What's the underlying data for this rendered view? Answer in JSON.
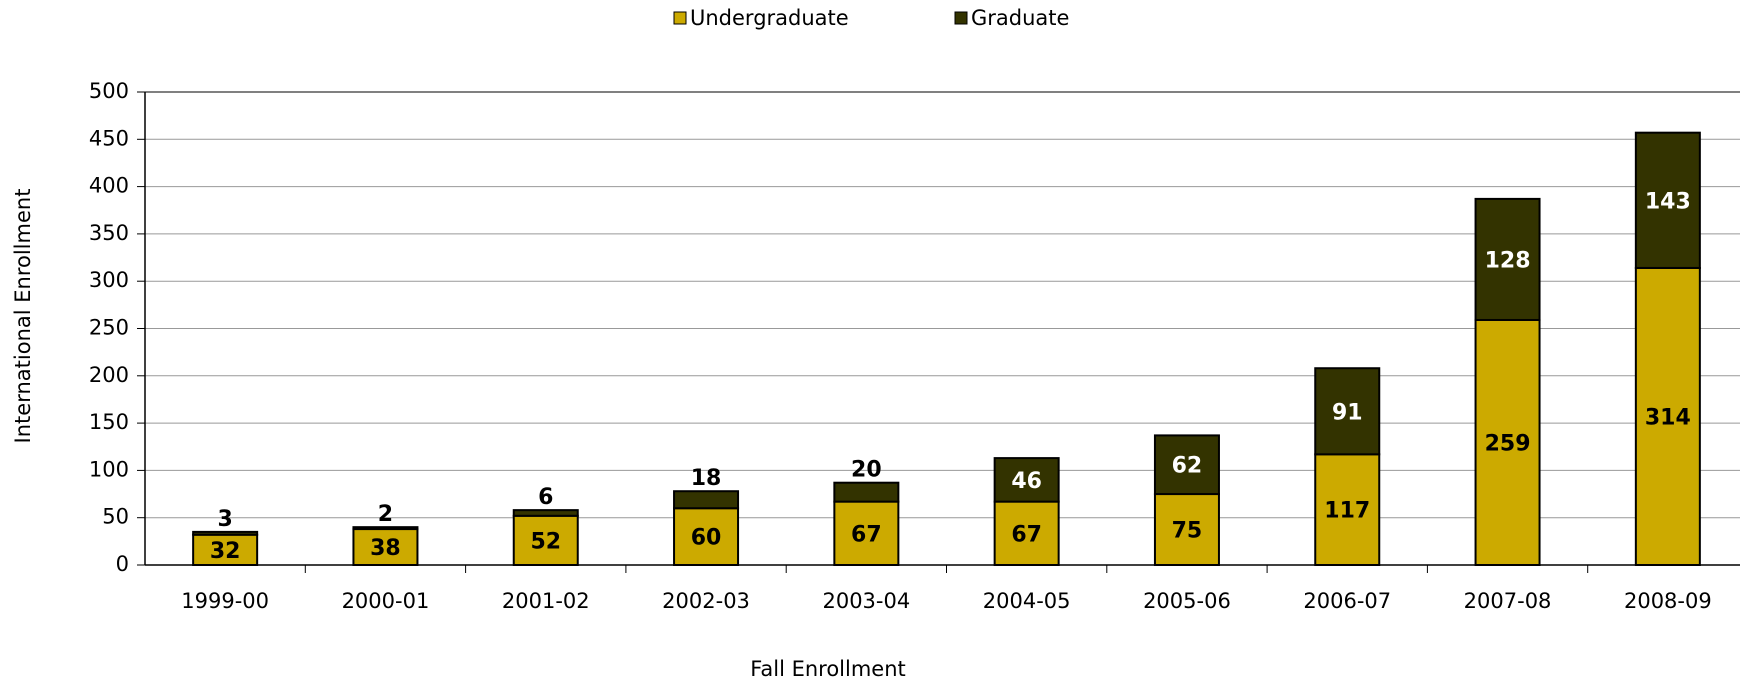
{
  "chart_data": {
    "type": "stacked_bar",
    "x_label": "Fall Enrollment",
    "y_label": "International Enrollment",
    "categories": [
      "1999-00",
      "2000-01",
      "2001-02",
      "2002-03",
      "2003-04",
      "2004-05",
      "2005-06",
      "2006-07",
      "2007-08",
      "2008-09"
    ],
    "series": [
      {
        "name": "Undergraduate",
        "color": "#ccaa00",
        "values": [
          32,
          38,
          52,
          60,
          67,
          67,
          75,
          117,
          259,
          314
        ]
      },
      {
        "name": "Graduate",
        "color": "#333300",
        "values": [
          3,
          2,
          6,
          18,
          20,
          46,
          62,
          91,
          128,
          143
        ]
      }
    ],
    "ylim": [
      0,
      500
    ],
    "yticks": [
      0,
      50,
      100,
      150,
      200,
      250,
      300,
      350,
      400,
      450,
      500
    ],
    "grid": true,
    "legend": "top"
  }
}
